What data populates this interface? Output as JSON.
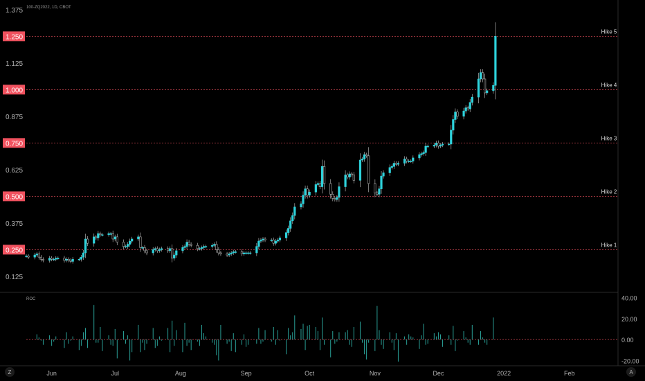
{
  "symbol_title": "100-ZQ2022, 1D, CBOT",
  "roc_title": "ROC",
  "bottom_left_label": "Z",
  "bottom_right_label": "A",
  "colors": {
    "background": "#000000",
    "up": "#2ed3dc",
    "down": "#000000",
    "wick": "#b0b0b0",
    "hike_line": "#f0515e",
    "hike_badge": "#f0515e",
    "roc_bar": "#2aa198",
    "roc_zero": "#f0515e",
    "axis_text": "#b2b2b2"
  },
  "price_axis": {
    "ticks": [
      "0.125",
      "0.375",
      "0.625",
      "0.875",
      "1.125",
      "1.375"
    ],
    "highlighted": [
      "0.250",
      "0.500",
      "0.750",
      "1.000",
      "1.250"
    ]
  },
  "roc_axis": {
    "ticks": [
      "40.00",
      "20.00",
      "0.00",
      "-20.00"
    ]
  },
  "time_axis": {
    "ticks": [
      "Jun",
      "Jul",
      "Aug",
      "Sep",
      "Oct",
      "Nov",
      "Dec",
      "2022",
      "Feb"
    ]
  },
  "hikes": [
    {
      "label": "Hike 1",
      "price": 0.25
    },
    {
      "label": "Hike 2",
      "price": 0.5
    },
    {
      "label": "Hike 3",
      "price": 0.75
    },
    {
      "label": "Hike 4",
      "price": 1.0
    },
    {
      "label": "Hike 5",
      "price": 1.25
    }
  ],
  "chart_data": {
    "type": "candlestick",
    "title": "100-ZQ2022, 1D, CBOT",
    "x_range": [
      "2021-05-20",
      "2022-02-24"
    ],
    "ylim": [
      0.05,
      1.42
    ],
    "roc_ylim": [
      -25,
      45
    ],
    "grid": false,
    "series": [
      {
        "name": "100-ZQ2022",
        "x_start": "2021-05-20",
        "close": [
          0.22,
          0.215,
          0.225,
          0.23,
          0.215,
          0.205,
          0.2,
          0.21,
          0.205,
          0.205,
          0.21,
          0.21,
          0.2,
          0.205,
          0.2,
          0.195,
          0.205,
          0.205,
          0.215,
          0.235,
          0.3,
          0.28,
          0.31,
          0.305,
          0.325,
          0.32,
          0.32,
          0.325,
          0.325,
          0.3,
          0.31,
          0.285,
          0.265,
          0.265,
          0.275,
          0.29,
          0.3,
          0.31,
          0.26,
          0.26,
          0.245,
          0.235,
          0.25,
          0.255,
          0.245,
          0.25,
          0.255,
          0.245,
          0.255,
          0.21,
          0.225,
          0.245,
          0.26,
          0.265,
          0.285,
          0.275,
          0.27,
          0.255,
          0.255,
          0.26,
          0.265,
          0.265,
          0.27,
          0.275,
          0.25,
          0.235,
          0.23,
          0.225,
          0.23,
          0.235,
          0.24,
          0.24,
          0.23,
          0.235,
          0.235,
          0.235,
          0.235,
          0.265,
          0.29,
          0.295,
          0.3,
          0.295,
          0.295,
          0.28,
          0.29,
          0.295,
          0.305,
          0.33,
          0.35,
          0.385,
          0.41,
          0.45,
          0.465,
          0.505,
          0.535,
          0.505,
          0.52,
          0.555,
          0.56,
          0.545,
          0.64,
          0.56,
          0.51,
          0.49,
          0.485,
          0.495,
          0.545,
          0.6,
          0.59,
          0.605,
          0.6,
          0.575,
          0.67,
          0.675,
          0.695,
          0.69,
          0.56,
          0.515,
          0.51,
          0.535,
          0.595,
          0.61,
          0.635,
          0.64,
          0.655,
          0.65,
          0.655,
          0.675,
          0.665,
          0.665,
          0.665,
          0.68,
          0.695,
          0.7,
          0.705,
          0.735,
          0.735,
          0.74,
          0.75,
          0.735,
          0.74,
          0.745,
          0.745,
          0.81,
          0.86,
          0.895,
          0.875,
          0.9,
          0.915,
          0.91,
          0.94,
          0.965,
          1.05,
          1.08,
          1.05,
          0.985,
          0.995,
          1.02,
          1.25
        ]
      },
      {
        "name": "ROC",
        "values": [
          0,
          0,
          0,
          5,
          2,
          -1,
          -5,
          4,
          -6,
          -2,
          3,
          0,
          -8,
          7,
          -4,
          -1,
          3,
          -10,
          -6,
          7,
          11,
          -8,
          33,
          -3,
          -3,
          12,
          -11,
          4,
          -5,
          -6,
          10,
          -18,
          8,
          -4,
          4,
          -20,
          -12,
          14,
          -12,
          -3,
          -10,
          -4,
          11,
          -8,
          -6,
          3,
          -1,
          11,
          -12,
          18,
          -6,
          9,
          -12,
          16,
          -6,
          -3,
          -10,
          -2,
          -6,
          14,
          6,
          3,
          -3,
          -5,
          -15,
          -20,
          14,
          -4,
          -2,
          -11,
          6,
          -12,
          -5,
          5,
          -7,
          -5,
          0,
          -4,
          11,
          -4,
          -2,
          9,
          -2,
          12,
          -5,
          9,
          -1,
          -14,
          11,
          4,
          7,
          23,
          10,
          15,
          -10,
          13,
          14,
          12,
          8,
          -10,
          21,
          -5,
          -17,
          8,
          -4,
          -2,
          7,
          7,
          9,
          -5,
          -7,
          12,
          17,
          -3,
          -14,
          -19,
          -3,
          -11,
          32,
          9,
          -5,
          -9,
          7,
          -3,
          -10,
          6,
          -21,
          3,
          -5,
          5,
          3,
          2,
          -9,
          4,
          15,
          -5,
          -4,
          6,
          3,
          7,
          5,
          -7,
          4,
          -5,
          13,
          -11,
          -1,
          8,
          2,
          -3,
          -5,
          14,
          -5,
          8,
          2,
          -3,
          -5,
          21,
          0,
          -9,
          4,
          -6,
          21
        ]
      }
    ]
  }
}
